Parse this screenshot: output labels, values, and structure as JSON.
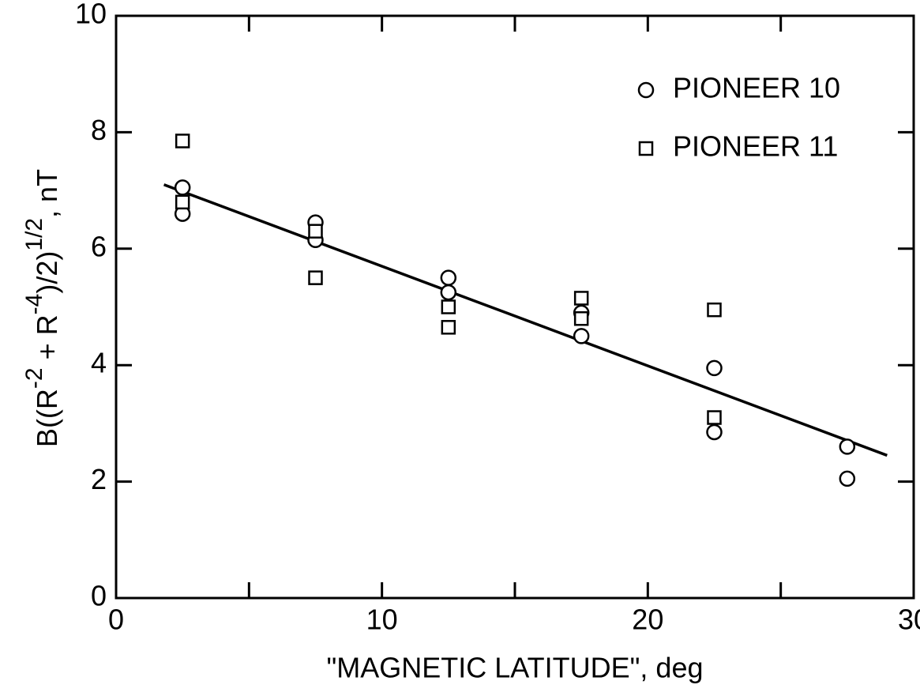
{
  "chart_data": {
    "type": "scatter",
    "xlabel": "\"MAGNETIC LATITUDE\", deg",
    "ylabel": [
      {
        "text": "B((R"
      },
      {
        "text": "-2",
        "sup": true
      },
      {
        "text": " + R"
      },
      {
        "text": "-4",
        "sup": true
      },
      {
        "text": ")/2)"
      },
      {
        "text": "1/2",
        "sup": true
      },
      {
        "text": ", nT"
      }
    ],
    "xlim": [
      0,
      30
    ],
    "ylim": [
      0,
      10
    ],
    "xticks": [
      0,
      10,
      20,
      30
    ],
    "xminor": [
      5,
      15,
      25
    ],
    "yticks": [
      0,
      2,
      4,
      6,
      8,
      10
    ],
    "legend": "upper right",
    "series": [
      {
        "name": "PIONEER 10",
        "marker": "circle",
        "color": "#000000",
        "x": [
          2.5,
          2.5,
          7.5,
          7.5,
          12.5,
          12.5,
          17.5,
          17.5,
          22.5,
          22.5,
          27.5,
          27.5
        ],
        "values": [
          7.05,
          6.6,
          6.45,
          6.15,
          5.5,
          5.25,
          4.9,
          4.5,
          3.95,
          2.85,
          2.6,
          2.05
        ]
      },
      {
        "name": "PIONEER 11",
        "marker": "square",
        "color": "#000000",
        "x": [
          2.5,
          2.5,
          7.5,
          7.5,
          12.5,
          12.5,
          17.5,
          17.5,
          22.5,
          22.5
        ],
        "values": [
          7.85,
          6.8,
          6.3,
          5.5,
          5.0,
          4.65,
          5.15,
          4.8,
          4.95,
          3.1
        ]
      }
    ],
    "fit": {
      "x": [
        1.8,
        29
      ],
      "values": [
        7.1,
        2.45
      ]
    }
  }
}
